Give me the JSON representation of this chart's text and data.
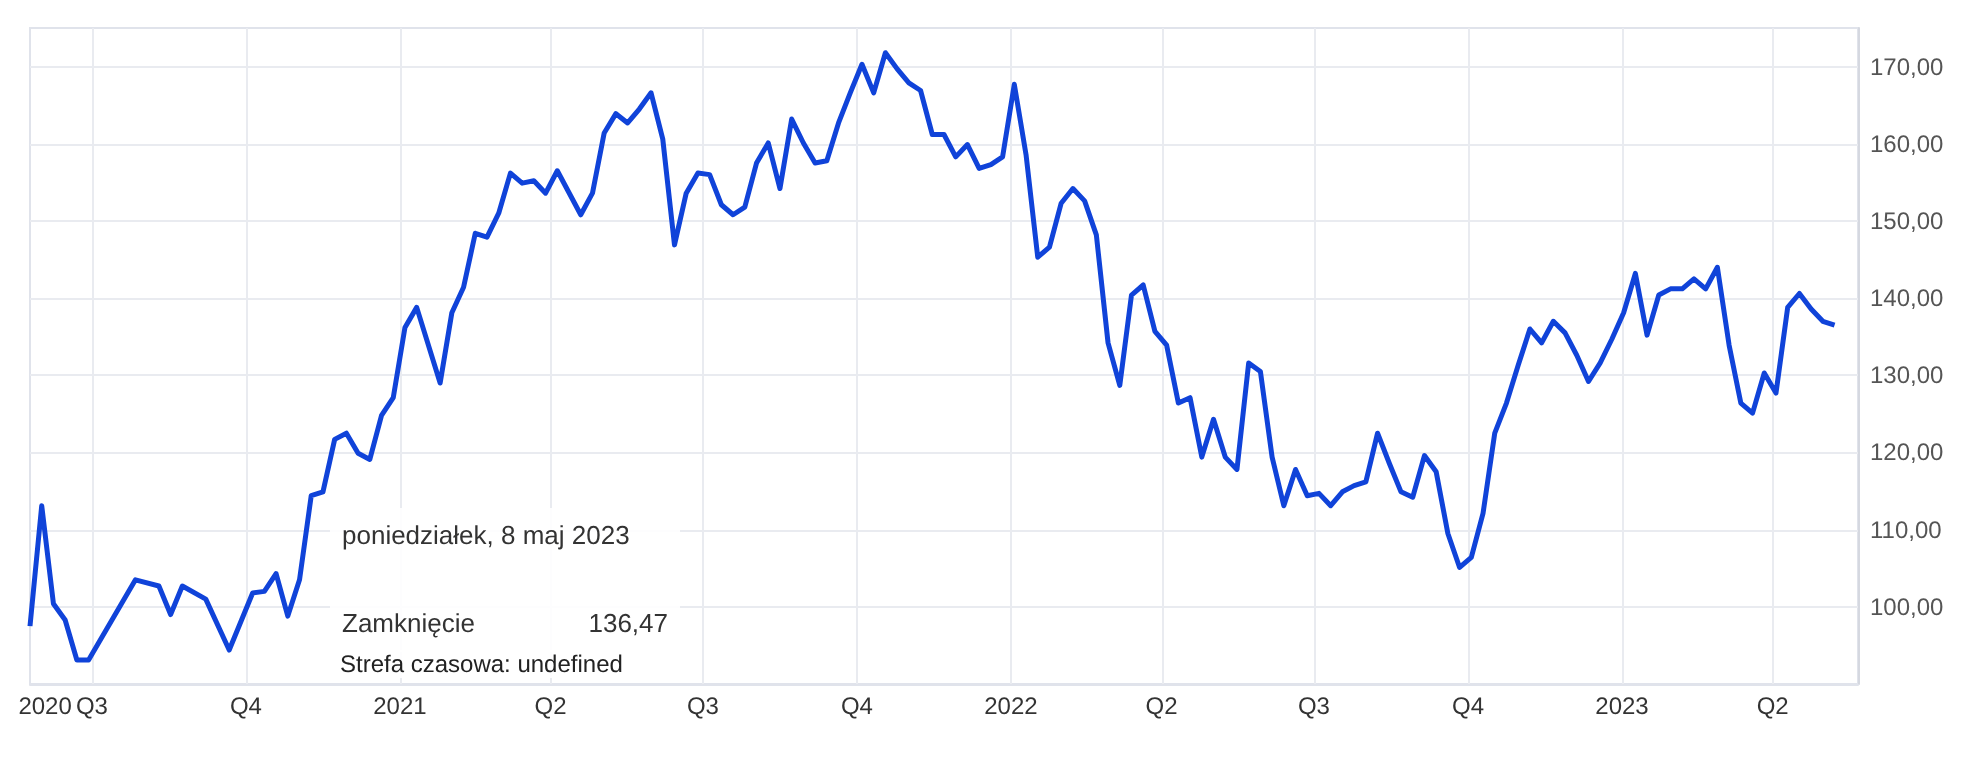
{
  "chart_data": {
    "type": "line",
    "annotations": [
      "poniedziałek, 8 maj 2023",
      "Zamknięcie",
      "136,47",
      "Strefa czasowa: undefined"
    ],
    "x": [
      "2020-05-25",
      "2020-06-01",
      "2020-06-08",
      "2020-06-15",
      "2020-06-22",
      "2020-06-29",
      "2020-07-27",
      "2020-08-10",
      "2020-08-17",
      "2020-08-24",
      "2020-09-07",
      "2020-09-21",
      "2020-10-05",
      "2020-10-12",
      "2020-10-19",
      "2020-10-26",
      "2020-11-02",
      "2020-11-09",
      "2020-11-16",
      "2020-11-23",
      "2020-11-30",
      "2020-12-07",
      "2020-12-14",
      "2020-12-21",
      "2020-12-28",
      "2021-01-04",
      "2021-01-11",
      "2021-01-25",
      "2021-02-01",
      "2021-02-08",
      "2021-02-15",
      "2021-02-22",
      "2021-03-01",
      "2021-03-08",
      "2021-03-15",
      "2021-03-22",
      "2021-03-29",
      "2021-04-05",
      "2021-04-19",
      "2021-04-26",
      "2021-05-03",
      "2021-05-10",
      "2021-05-17",
      "2021-05-24",
      "2021-05-31",
      "2021-06-07",
      "2021-06-14",
      "2021-06-21",
      "2021-06-28",
      "2021-07-05",
      "2021-07-12",
      "2021-07-19",
      "2021-07-26",
      "2021-08-02",
      "2021-08-09",
      "2021-08-16",
      "2021-08-23",
      "2021-08-30",
      "2021-09-06",
      "2021-09-13",
      "2021-09-20",
      "2021-09-27",
      "2021-10-04",
      "2021-10-11",
      "2021-10-18",
      "2021-10-25",
      "2021-11-01",
      "2021-11-08",
      "2021-11-15",
      "2021-11-22",
      "2021-11-29",
      "2021-12-06",
      "2021-12-13",
      "2021-12-20",
      "2021-12-27",
      "2022-01-03",
      "2022-01-10",
      "2022-01-17",
      "2022-01-24",
      "2022-01-31",
      "2022-02-07",
      "2022-02-14",
      "2022-02-21",
      "2022-02-28",
      "2022-03-07",
      "2022-03-14",
      "2022-03-21",
      "2022-03-28",
      "2022-04-04",
      "2022-04-11",
      "2022-04-18",
      "2022-04-25",
      "2022-05-02",
      "2022-05-09",
      "2022-05-16",
      "2022-05-23",
      "2022-05-30",
      "2022-06-06",
      "2022-06-13",
      "2022-06-20",
      "2022-06-27",
      "2022-07-04",
      "2022-07-11",
      "2022-07-18",
      "2022-07-25",
      "2022-08-01",
      "2022-08-08",
      "2022-08-15",
      "2022-08-22",
      "2022-08-29",
      "2022-09-05",
      "2022-09-12",
      "2022-09-19",
      "2022-09-26",
      "2022-10-03",
      "2022-10-10",
      "2022-10-17",
      "2022-10-24",
      "2022-10-31",
      "2022-11-07",
      "2022-11-14",
      "2022-11-21",
      "2022-11-28",
      "2022-12-05",
      "2022-12-12",
      "2022-12-19",
      "2022-12-26",
      "2023-01-02",
      "2023-01-09",
      "2023-01-16",
      "2023-01-23",
      "2023-01-30",
      "2023-02-06",
      "2023-02-13",
      "2023-02-20",
      "2023-02-27",
      "2023-03-06",
      "2023-03-13",
      "2023-03-20",
      "2023-03-27",
      "2023-04-03",
      "2023-04-10",
      "2023-04-17",
      "2023-04-24",
      "2023-05-01",
      "2023-05-08"
    ],
    "series": [
      {
        "color": "#1043d9",
        "values": [
          97.5,
          113.1,
          100.4,
          98.3,
          93.1,
          93.1,
          103.5,
          102.7,
          99,
          102.7,
          101,
          94.4,
          101.8,
          102,
          104.3,
          98.8,
          103.5,
          114.4,
          114.9,
          121.7,
          122.5,
          119.9,
          119.1,
          124.8,
          127.1,
          136.2,
          138.8,
          129,
          138.1,
          141.4,
          148.4,
          147.9,
          151,
          156.2,
          154.9,
          155.2,
          153.6,
          156.5,
          150.8,
          153.6,
          161.4,
          163.9,
          162.7,
          164.5,
          166.6,
          160.6,
          146.9,
          153.6,
          156.2,
          156,
          152.1,
          150.8,
          151.8,
          157.5,
          160.1,
          154.2,
          163.2,
          160.1,
          157.5,
          157.8,
          162.7,
          166.6,
          170.3,
          166.6,
          171.8,
          169.7,
          167.9,
          166.9,
          161.2,
          161.2,
          158.3,
          159.9,
          156.8,
          157.3,
          158.3,
          167.7,
          158.6,
          145.3,
          146.6,
          152.3,
          154.2,
          152.6,
          148.2,
          134.2,
          128.7,
          140.4,
          141.7,
          135.7,
          133.9,
          126.4,
          127.1,
          119.4,
          124.3,
          119.4,
          117.8,
          131.6,
          130.5,
          119.4,
          113.1,
          117.8,
          114.4,
          114.7,
          113.1,
          114.9,
          115.7,
          116.2,
          122.5,
          118.6,
          114.9,
          114.2,
          119.6,
          117.5,
          109.5,
          105.1,
          106.4,
          112.1,
          122.5,
          126.4,
          131.3,
          136,
          134.2,
          137,
          135.5,
          132.6,
          129.2,
          131.6,
          134.7,
          138.1,
          143.2,
          135.2,
          140.4,
          141.2,
          141.2,
          142.5,
          141.2,
          144,
          133.9,
          126.4,
          125.1,
          130.3,
          127.7,
          138.8,
          140.6,
          138.6,
          137,
          136.5
        ]
      }
    ],
    "xlim": [
      "2020-05-25",
      "2023-05-22"
    ],
    "xticks": [
      {
        "value": "2020-06-03",
        "label": "2020"
      },
      {
        "value": "2020-07-01",
        "label": "Q3"
      },
      {
        "value": "2020-10-01",
        "label": "Q4"
      },
      {
        "value": "2021-01-01",
        "label": "2021"
      },
      {
        "value": "2021-04-01",
        "label": "Q2"
      },
      {
        "value": "2021-07-01",
        "label": "Q3"
      },
      {
        "value": "2021-10-01",
        "label": "Q4"
      },
      {
        "value": "2022-01-01",
        "label": "2022"
      },
      {
        "value": "2022-04-01",
        "label": "Q2"
      },
      {
        "value": "2022-07-01",
        "label": "Q3"
      },
      {
        "value": "2022-10-01",
        "label": "Q4"
      },
      {
        "value": "2023-01-01",
        "label": "2023"
      },
      {
        "value": "2023-04-01",
        "label": "Q2"
      }
    ],
    "ylim": [
      90,
      175
    ],
    "yticks": [
      {
        "value": 100,
        "label": "100,00"
      },
      {
        "value": 110,
        "label": "110,00"
      },
      {
        "value": 120,
        "label": "120,00"
      },
      {
        "value": 130,
        "label": "130,00"
      },
      {
        "value": 140,
        "label": "140,00"
      },
      {
        "value": 150,
        "label": "150,00"
      },
      {
        "value": 160,
        "label": "160,00"
      },
      {
        "value": 170,
        "label": "170,00"
      }
    ],
    "grid": true
  }
}
